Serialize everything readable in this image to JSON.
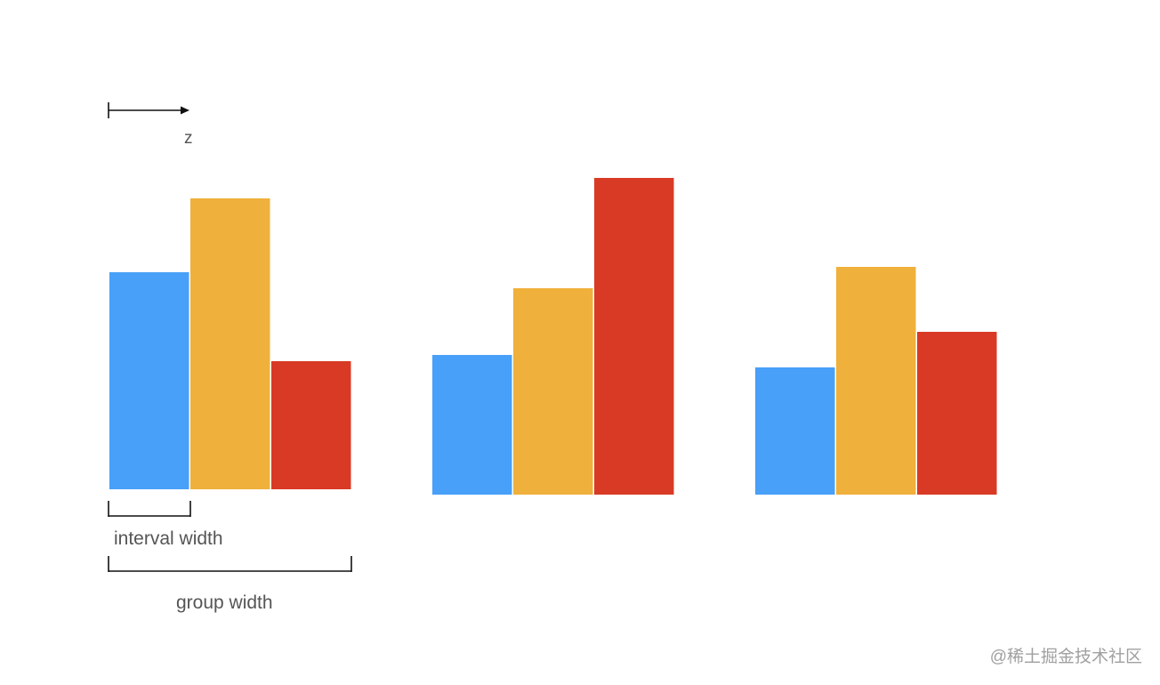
{
  "labels": {
    "axis_direction": "z",
    "interval_width": "interval width",
    "group_width": "group width"
  },
  "watermark": "@稀土掘金技术社区",
  "colors": {
    "series_1": "#48a0f8",
    "series_2": "#f0b03c",
    "series_3": "#d83a25",
    "line": "#111111",
    "label_text": "#555555",
    "watermark_text": "#a0a0a0"
  },
  "chart_data": {
    "type": "bar",
    "categories": [
      "",
      "",
      ""
    ],
    "series": [
      {
        "values": [
          244,
          157,
          143
        ]
      },
      {
        "values": [
          327,
          232,
          256
        ]
      },
      {
        "values": [
          144,
          356,
          183
        ]
      }
    ]
  }
}
